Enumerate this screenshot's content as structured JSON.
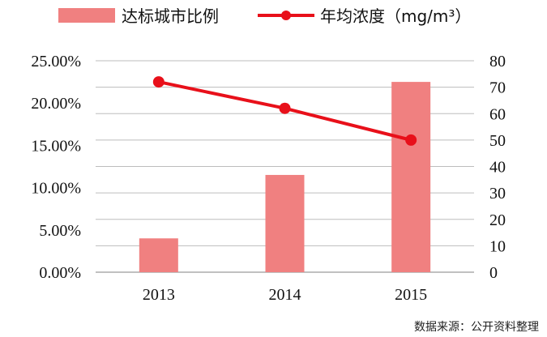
{
  "chart_data": {
    "type": "bar",
    "categories": [
      "2013",
      "2014",
      "2015"
    ],
    "series": [
      {
        "name": "达标城市比例",
        "kind": "bar",
        "axis": "left",
        "values": [
          0.04,
          0.115,
          0.225
        ],
        "color": "#f08080"
      },
      {
        "name": "年均浓度（mg/m³）",
        "kind": "line",
        "axis": "right",
        "values": [
          72,
          62,
          50
        ],
        "color": "#e8101a"
      }
    ],
    "left_axis": {
      "ylim": [
        0,
        0.25
      ],
      "ticks": [
        0,
        0.05,
        0.1,
        0.15,
        0.2,
        0.25
      ],
      "tick_labels": [
        "0.00%",
        "5.00%",
        "10.00%",
        "15.00%",
        "20.00%",
        "25.00%"
      ]
    },
    "right_axis": {
      "ylim": [
        0,
        80
      ],
      "ticks": [
        0,
        10,
        20,
        30,
        40,
        50,
        60,
        70,
        80
      ],
      "tick_labels": [
        "0",
        "10",
        "20",
        "30",
        "40",
        "50",
        "60",
        "70",
        "80"
      ]
    },
    "grid": true,
    "legend_position": "top",
    "source": "数据来源：公开资料整理"
  }
}
